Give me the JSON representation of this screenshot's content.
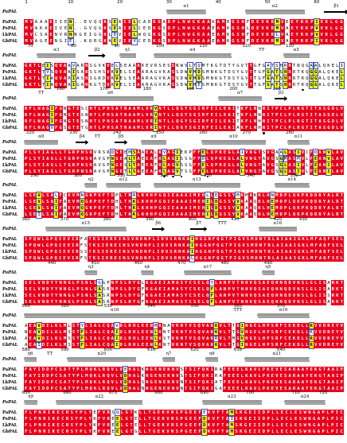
{
  "figure": {
    "ss_ref": "PaPAL",
    "seq_names": [
      "PaPAL",
      "PsPAL",
      "LkPAL",
      "GbPAL"
    ],
    "colors": {
      "identical": "#e8001c",
      "similar_text": "#ffff00",
      "frame": "#3a52c8"
    },
    "blocks": [
      {
        "ruler": [
          {
            "col": 1,
            "label": "1"
          },
          {
            "col": 10,
            "label": "10"
          },
          {
            "col": 20,
            "label": "20"
          },
          {
            "col": 30,
            "label": "30"
          },
          {
            "col": 40,
            "label": "40"
          },
          {
            "col": 50,
            "label": "50"
          },
          {
            "col": 60,
            "label": "60"
          }
        ],
        "ss": [
          {
            "kind": "helix",
            "label": "α1",
            "start": 30,
            "end": 37
          },
          {
            "kind": "helix",
            "label": "α2",
            "start": 46,
            "end": 57
          },
          {
            "kind": "strand",
            "label": "β1",
            "start": 62,
            "end": 66
          }
        ],
        "seqs": [
          "MVAAAEIIEN..EVQQKSEAIELCADKGADPLNWGKAAKAMEGSHFDEVKRMVEEYRKPIVKLGG",
          "MVAKAEIVEN..GVQGKSEAIELCEDKGSDPLNWGKAAEAMKGSHLDEVKRMVAEYRKPVVKLGG",
          "MVCSAENVRNNGEIGGKLDVIELWQGKGSDPLNWGKAAEAMKGSHFDEVKRLVAEYRKPVVKLGG",
          "MVAGEENGIE..KQRGKAEVIEVCEDKGSDPLNWGKAAEAMKGSHFDEVKRMVAEYRKPIVKLGG"
        ],
        "dots": []
      },
      {
        "ruler": [
          {
            "col": 2,
            "label": "70"
          },
          {
            "col": 12,
            "label": "80"
          },
          {
            "col": 22,
            "label": "90"
          },
          {
            "col": 32,
            "label": "100"
          },
          {
            "col": 42,
            "label": "110"
          },
          {
            "col": 52,
            "label": "120"
          },
          {
            "col": 62,
            "label": "130"
          }
        ],
        "ss": [
          {
            "kind": "helix",
            "label": "α3",
            "start": 4,
            "end": 12
          },
          {
            "kind": "strand",
            "label": "β2",
            "start": 16,
            "end": 19
          },
          {
            "kind": "helix",
            "label": "η1",
            "start": 23,
            "end": 26
          },
          {
            "kind": "helix",
            "label": "α4",
            "start": 31,
            "end": 48
          },
          {
            "kind": "turn",
            "label": "TT",
            "start": 55,
            "end": 56
          },
          {
            "kind": "helix",
            "label": "α5",
            "start": 61,
            "end": 66
          }
        ],
        "seqs": [
          "GKTLEISQVAAVARRSGVKVELSEAAAKEVRSESSNWVLTQMTKGTDTYGVTTGFGATSHRRTNQGAALQKELI",
          "GKTLTVSQVAAISARSSHSVKVELSEAARAGVKASSDWVMDSMNKGTDSYGVTTGFGATSHRRTKQGGALQKELI",
          "GKTLTIAQVARIASRSGKDVKVELSEAARAGVKASSDWVMDSMNKGTDSYGVTTGFGATSHRRTKQGGALQKELI",
          "GKTLTIAQVAAIGARKGTDVKVELSEAARAGVKASSDWVMESMNKGTDSYGVTTGFGATSHRRTKQGGALQKELI"
        ],
        "dots": [
          65
        ]
      },
      {
        "ruler": [
          {
            "col": 9,
            "label": "160"
          },
          {
            "col": 19,
            "label": "170"
          },
          {
            "col": 29,
            "label": "180"
          },
          {
            "col": 39,
            "label": "190"
          },
          {
            "col": 49,
            "label": "200"
          },
          {
            "col": 59,
            "label": "210"
          }
        ],
        "ss": [
          {
            "kind": "turn",
            "label": "TT",
            "start": 4,
            "end": 5
          },
          {
            "kind": "helix",
            "label": "α6",
            "start": 11,
            "end": 30
          },
          {
            "kind": "helix",
            "label": "α7",
            "start": 46,
            "end": 55
          },
          {
            "kind": "strand",
            "label": "β3",
            "start": 59,
            "end": 61
          }
        ],
        "seqs": [
          "RFLNAGIFGNGTESCHTLPHSATRAAMLVRVNTLLQGYSGIRFEILEAITKFLNNNITPCLPLRGTITASGDLV",
          "RFLNAGIFGNGTESNHTLPHSATRAAMLVRVNTLLQGYSGIRFEILEAITKFLNNNITPCLPLRGTITASGDLV",
          "RFLNAGIFGNGTESNHTLPHSATRAAMLVRINTLLQGYSGIRFEILEAITKFLNHNITPCLPLRGTITASGDLV",
          "RFLNAGVFGSGTEYGHTLPHSATRAAMLVRINTLLQGYSGIRFEILEAIAKFLNHNITPCLPLRGTITASGDLV"
        ],
        "dots": [
          56
        ]
      },
      {
        "ruler": [
          {
            "col": 2,
            "label": "220"
          },
          {
            "col": 12,
            "label": "230"
          },
          {
            "col": 22,
            "label": "240"
          },
          {
            "col": 32,
            "label": "250"
          },
          {
            "col": 42,
            "label": "260"
          },
          {
            "col": 52,
            "label": "270"
          },
          {
            "col": 62,
            "label": "280"
          }
        ],
        "ss": [
          {
            "kind": "helix",
            "label": "α8",
            "start": 1,
            "end": 8
          },
          {
            "kind": "strand",
            "label": "β4",
            "start": 13,
            "end": 15
          },
          {
            "kind": "turn",
            "label": "TT",
            "start": 17,
            "end": 18
          },
          {
            "kind": "strand",
            "label": "β5",
            "start": 22,
            "end": 24
          },
          {
            "kind": "helix",
            "label": "α9",
            "start": 28,
            "end": 33
          },
          {
            "kind": "helix",
            "label": "α10",
            "start": 42,
            "end": 56
          },
          {
            "kind": "helix",
            "label": "α11",
            "start": 62,
            "end": 66
          }
        ],
        "seqs": [
          "PLSYIAGLLTGRPNSKVRSRDGEEMSAAEALKVAGIEKPFFELQPKEGLAIVNGTSVGAALASIVCFDANVLAV",
          "PLSYIAGLLTGRPNSKAVGPNGEALTAEEAFKLAGISSGFFDLQPKEGLALVNGTAVGSGMASMVLFEANVLAV",
          "PLSYIAGLLTGRPNSKAVGPNGESLTAEEAFKLAGVSSGFFELQPKEGLALVNGTAVGSGLASIVLFEANILAV",
          "PLSYIAGLLTGRPNSKAVGPNGETLSAEEAFKLAGVTSGFFELQPKEGLALVNGTAVGSGLASIVLFEANILAV"
        ],
        "dots": [
          33,
          35,
          37,
          43
        ]
      },
      {
        "ruler": [
          {
            "col": 3,
            "label": "290"
          },
          {
            "col": 13,
            "label": "300"
          },
          {
            "col": 23,
            "label": "310"
          },
          {
            "col": 33,
            "label": "320"
          },
          {
            "col": 43,
            "label": "330"
          },
          {
            "col": 53,
            "label": "340"
          },
          {
            "col": 63,
            "label": "350"
          }
        ],
        "ss": [
          {
            "kind": "helix",
            "label": "η2",
            "start": 15,
            "end": 17
          },
          {
            "kind": "helix",
            "label": "α12",
            "start": 20,
            "end": 27
          },
          {
            "kind": "helix",
            "label": "α13",
            "start": 31,
            "end": 50
          },
          {
            "kind": "helix",
            "label": "α14",
            "start": 59,
            "end": 66
          }
        ],
        "seqs": [
          "LSEVLSALFCEVMNGKPEFTDPLTHRLKHHPGQIEAAAIMEHLLEGSSYMKMAKKLHNMDPLQKPKQDRYALRT",
          "LSEVLSAIFAEVMQGKPEFTDHLTHKLKHHPGQIEAAAIMEHILDGSSYVKAAQKLHEMDPLQKPKQDRYALRT",
          "LSEVLSAIFAEVMQGKPEFTDHLTHKLKHHPGQIEAAAIMEHILDGSSYVKAAQKLHEMDPLQKPKQDRYALRT",
          "LSEILSAIFAEVMQGKPEFTDHLTHKLKHHPGQIEAAAIMEHILDGSSYVKAAQKLHEMDPLQKPKQDRYALRT"
        ],
        "dots": []
      },
      {
        "ruler": [
          {
            "col": 1,
            "label": "360"
          },
          {
            "col": 10,
            "label": "370"
          },
          {
            "col": 20,
            "label": "380"
          },
          {
            "col": 30,
            "label": "390"
          },
          {
            "col": 40,
            "label": "400"
          },
          {
            "col": 50,
            "label": "410"
          },
          {
            "col": 60,
            "label": "420"
          },
          {
            "col": 66,
            "label": "430"
          }
        ],
        "ss": [
          {
            "kind": "helix",
            "label": "α15",
            "start": 6,
            "end": 24
          },
          {
            "kind": "strand",
            "label": "β6",
            "start": 31,
            "end": 33
          },
          {
            "kind": "strand",
            "label": "β7",
            "start": 40,
            "end": 43
          },
          {
            "kind": "turn",
            "label": "TTT",
            "start": 46,
            "end": 48
          },
          {
            "kind": "helix",
            "label": "α16",
            "start": 56,
            "end": 64
          }
        ],
        "seqs": [
          "SPQWLGPQIEVIRFATKSIEREINSVNDNPLIDVSRNKAIHGGNFQGTPIGVSMDNTRLAIAAIGKLMFAQFSEL",
          "SPQWLGPQIEVIRFSTKSIEREINSVNDNPLIDVSRNKAIHGGNFQGTPIGVSMDNTRLAIAAIGKLMFAQFSEL",
          "SPQWLGPQIEVIRSSTKSIEREINSVNDNPLIDVSRNKAIHGGNFQGTPIGVSMDNTRLAIAAIGKLMFAQFSEL",
          "SPQWLGPQIEVIRFSTKSIEREINSVNDNPLIDVSRNKALHGGNFQGTPIGVSMDNTRLAIAAIGKLMFAQFSEL"
        ],
        "dots": []
      },
      {
        "ruler": [
          {
            "col": 7,
            "label": "440"
          },
          {
            "col": 17,
            "label": "450"
          },
          {
            "col": 27,
            "label": "460"
          },
          {
            "col": 37,
            "label": "470"
          },
          {
            "col": 47,
            "label": "480"
          },
          {
            "col": 57,
            "label": "490"
          }
        ],
        "ss": [
          {
            "kind": "helix",
            "label": "η3",
            "start": 15,
            "end": 17
          },
          {
            "kind": "helix",
            "label": "η4",
            "start": 28,
            "end": 30
          },
          {
            "kind": "helix",
            "label": "α17",
            "start": 38,
            "end": 48
          },
          {
            "kind": "helix",
            "label": "η5",
            "start": 56,
            "end": 58
          }
        ],
        "seqs": [
          "SELVNDYYNNGLPSNLSGGPNPSLDYGLKGAEIAMASYCSELQYLANPVTNHVQSAEQHNQDVNSLGLISARKT",
          "SELVNDYYNNGLPSNLSASRNPSLDYGFKGAEIAMASYCSELQFLANPVTNHVQSAEQHNQDVNSLGLISARKT",
          "SELVNDYYNNGLPSNLSASRNPSLDYGFKGAEIAMASYCSELQFLANPVTNHVQSAEQHNQDVNSLGLISSRKT",
          "SELVNDYYNNGLPSNLSASRNPSLDYGFKGAEIAMASYCSELQFLANPVTNHVQSAEQHNQDVNSLGLISARKT"
        ],
        "dots": []
      },
      {
        "ruler": [
          {
            "col": 1,
            "label": "510"
          },
          {
            "col": 10,
            "label": "520"
          },
          {
            "col": 20,
            "label": "530"
          },
          {
            "col": 30,
            "label": "540"
          },
          {
            "col": 40,
            "label": "550"
          },
          {
            "col": 50,
            "label": "560"
          },
          {
            "col": 60,
            "label": "570"
          }
        ],
        "ss": [
          {
            "kind": "helix",
            "label": "α18",
            "start": 1,
            "end": 42
          },
          {
            "kind": "turn",
            "label": "TTT",
            "start": 49,
            "end": 51
          },
          {
            "kind": "helix",
            "label": "α19",
            "start": 55,
            "end": 66
          }
        ],
        "seqs": [
          "AEAVDILKLMLSTYLIALCQAVDLRHLEENMKNAVKNTVSQVAKKVLTTGINGELHPSRFCEKDLLRVVDREYV",
          "NEAVDILKLMSSTFLIALCQAIDLRHLEENLKNTVKNTVSQVAKKVLTTGVNGELHPSRFCEKDLLKVVDREYV",
          "AEAVDILKLMSSTFLIALCQAIDLRHLEENLKSTVKNTVSQVAKRVLTMGVNGELHPSRFCEKDLLRVVDREYV",
          "AEAIDILKLMSSTFLIALCQAIDLRHLEENLKNTVKNTVSQVAKKVLTTGINGELHPSRFCEKDLLRVVDREYV"
        ],
        "dots": []
      },
      {
        "ruler": [
          {
            "col": 1,
            "label": "580"
          },
          {
            "col": 10,
            "label": "590"
          },
          {
            "col": 20,
            "label": "600"
          },
          {
            "col": 30,
            "label": "610"
          },
          {
            "col": 40,
            "label": "620"
          },
          {
            "col": 50,
            "label": "630"
          },
          {
            "col": 60,
            "label": "640"
          }
        ],
        "ss": [
          {
            "kind": "helix",
            "label": "η6",
            "start": 1,
            "end": 3
          },
          {
            "kind": "turn",
            "label": "TT",
            "start": 6,
            "end": 7
          },
          {
            "kind": "helix",
            "label": "α20",
            "start": 11,
            "end": 26
          },
          {
            "kind": "helix",
            "label": "η7",
            "start": 33,
            "end": 35
          },
          {
            "kind": "helix",
            "label": "η8",
            "start": 43,
            "end": 45
          },
          {
            "kind": "helix",
            "label": "α21",
            "start": 52,
            "end": 66
          }
        ],
        "seqs": [
          "FAYIDDPCSATYPLMQKLRQVLVEHALKNGENEKNVSTSIFQKIRAFEEELKAVLPKEVESARAAYEKGTAAIP",
          "FAYIDDPCSATYPLMQKLRQVLVDHALKNGENEKNVSTSIFQKIRAFEEELKAVLPKEVESARAAYEKGTAAIP",
          "FAYIDDPCSATYPLMQKLRQVLVDHALSNGENEKNVNTSIFQKIATFEEELKAVLPKEVESARAAYEKGTAAIP",
          "FAYIDDPCSATYPLMQKLRQVLVDHALNNGENEKNVNTSIFQKIGAFEEELKAVLPKEVESARAAYEKGTAAIP"
        ],
        "dots": []
      },
      {
        "ruler": [
          {
            "col": 1,
            "label": "650"
          },
          {
            "col": 10,
            "label": "660"
          },
          {
            "col": 20,
            "label": "670"
          },
          {
            "col": 30,
            "label": "680"
          },
          {
            "col": 40,
            "label": "690"
          },
          {
            "col": 50,
            "label": "700"
          },
          {
            "col": 60,
            "label": "710"
          },
          {
            "col": 66,
            "label": "720"
          }
        ],
        "ss": [
          {
            "kind": "helix",
            "label": "η9",
            "start": 1,
            "end": 3
          },
          {
            "kind": "helix",
            "label": "α22",
            "start": 8,
            "end": 26
          },
          {
            "kind": "helix",
            "label": "α23",
            "start": 40,
            "end": 52
          },
          {
            "kind": "helix",
            "label": "α24",
            "start": 58,
            "end": 66
          }
        ],
        "seqs": [
          "FLPNRIKECRSYPLYEFVRSQLGTKLLTGEKVRSPGEEFEKVFTAMSKGEIIDPLLECLESWNGAPLPIC",
          "FLPNRIKECRSYPLYKFVREELGTELLTGEKVRSPGEEFDKVFTAISKGEIIDPLLECLESWNGAPLPIC",
          "FLPNRIKECRSYPLYKFVREELGTELLTGEKVRSPGEEFDKVFTAMSKGEIIDPLLECLESWNGAPLPIC",
          "FLPNRIKECRSYPLYKFVREELGTGLLTGEKVRSPGEEFDKVFTAMSKGEIIDPLLECLESWNGAPLPIC"
        ],
        "dots": []
      }
    ]
  }
}
